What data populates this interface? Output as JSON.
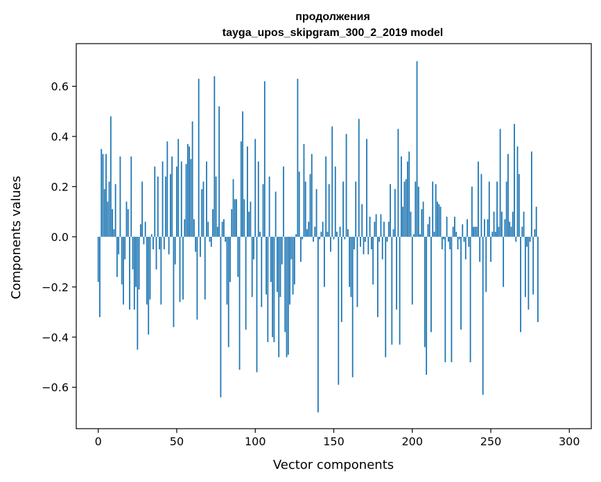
{
  "chart_data": {
    "type": "bar",
    "title_lines": [
      "продолжения",
      "tayga_upos_skipgram_300_2_2019 model"
    ],
    "xlabel": "Vector components",
    "ylabel": "Components values",
    "xlim": [
      -14,
      314
    ],
    "ylim": [
      -0.765,
      0.77
    ],
    "xticks": [
      0,
      50,
      100,
      150,
      200,
      250,
      300
    ],
    "xtick_labels": [
      "0",
      "50",
      "100",
      "150",
      "200",
      "250",
      "300"
    ],
    "yticks": [
      -0.6,
      -0.4,
      -0.2,
      0.0,
      0.2,
      0.4,
      0.6
    ],
    "ytick_labels": [
      "−0.6",
      "−0.4",
      "−0.2",
      "0.0",
      "0.2",
      "0.4",
      "0.6"
    ],
    "bar_color": "#1f77b4",
    "values": [
      -0.18,
      -0.32,
      0.35,
      0.33,
      0.19,
      0.33,
      0.14,
      0.22,
      0.48,
      0.11,
      0.03,
      0.21,
      -0.16,
      -0.07,
      0.32,
      -0.19,
      -0.27,
      -0.09,
      0.14,
      0.11,
      -0.29,
      0.32,
      -0.13,
      -0.29,
      -0.2,
      -0.45,
      -0.21,
      0.05,
      0.22,
      -0.03,
      0.06,
      -0.27,
      -0.39,
      -0.25,
      0.01,
      -0.05,
      0.28,
      -0.13,
      0.24,
      -0.05,
      -0.27,
      0.3,
      -0.05,
      0.24,
      0.38,
      -0.07,
      0.25,
      0.32,
      -0.36,
      -0.11,
      0.28,
      0.39,
      -0.26,
      0.3,
      -0.25,
      0.07,
      0.29,
      0.37,
      0.36,
      0.31,
      0.46,
      0.07,
      -0.06,
      -0.33,
      0.63,
      -0.08,
      0.19,
      0.22,
      -0.25,
      0.3,
      0.06,
      -0.02,
      -0.04,
      0.11,
      0.64,
      0.24,
      0.04,
      0.52,
      -0.64,
      0.06,
      0.07,
      -0.02,
      -0.27,
      -0.44,
      -0.18,
      0.11,
      0.23,
      0.15,
      0.15,
      -0.16,
      -0.53,
      0.38,
      0.5,
      0.15,
      -0.37,
      0.36,
      0.1,
      0.14,
      -0.24,
      -0.09,
      0.39,
      -0.54,
      0.3,
      0.02,
      -0.28,
      0.21,
      0.62,
      -0.23,
      -0.42,
      0.24,
      -0.18,
      -0.4,
      -0.42,
      0.18,
      -0.22,
      -0.48,
      -0.24,
      -0.11,
      0.28,
      -0.38,
      -0.48,
      -0.47,
      -0.27,
      -0.09,
      -0.23,
      -0.19,
      0.01,
      0.63,
      0.26,
      -0.1,
      -0.01,
      0.37,
      0.22,
      0.03,
      0.06,
      0.25,
      0.33,
      -0.02,
      0.04,
      0.19,
      -0.7,
      -0.01,
      0.02,
      0.06,
      -0.2,
      0.32,
      0.02,
      0.21,
      -0.06,
      0.44,
      -0.01,
      0.28,
      0.02,
      -0.59,
      0.04,
      -0.34,
      0.22,
      -0.01,
      0.41,
      0.03,
      -0.2,
      -0.24,
      -0.56,
      -0.05,
      0.22,
      -0.28,
      0.47,
      -0.04,
      0.13,
      -0.07,
      -0.02,
      0.39,
      -0.07,
      0.08,
      -0.05,
      -0.19,
      0.06,
      0.09,
      -0.32,
      -0.02,
      0.09,
      -0.09,
      0.06,
      -0.48,
      -0.02,
      0.06,
      0.21,
      -0.43,
      0.03,
      0.19,
      -0.29,
      0.43,
      -0.43,
      0.32,
      0.12,
      0.22,
      0.23,
      0.3,
      0.34,
      0.1,
      -0.27,
      0.01,
      0.22,
      0.7,
      0.2,
      0.01,
      0.11,
      0.14,
      -0.44,
      -0.55,
      0.05,
      0.08,
      -0.38,
      0.22,
      0.02,
      0.21,
      0.14,
      0.13,
      0.12,
      -0.05,
      -0.01,
      -0.5,
      0.08,
      -0.02,
      -0.05,
      -0.5,
      0.04,
      0.08,
      0.02,
      -0.05,
      -0.01,
      -0.37,
      0.05,
      -0.02,
      -0.09,
      0.07,
      -0.04,
      -0.5,
      0.2,
      0.04,
      0.04,
      0.04,
      0.3,
      -0.1,
      0.25,
      -0.63,
      0.07,
      -0.22,
      0.07,
      0.22,
      -0.1,
      0.02,
      0.1,
      0.02,
      0.22,
      0.04,
      0.43,
      0.1,
      -0.2,
      0.07,
      0.22,
      0.33,
      0.06,
      0.04,
      0.1,
      0.45,
      -0.02,
      0.36,
      0.25,
      -0.38,
      0.04,
      0.1,
      -0.24,
      -0.04,
      -0.29,
      -0.02,
      0.34,
      -0.23,
      0.03,
      0.12,
      -0.34
    ]
  }
}
